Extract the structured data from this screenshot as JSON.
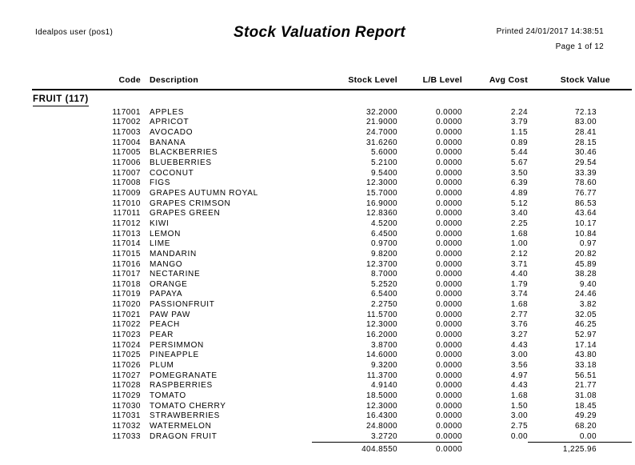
{
  "colors": {
    "text": "#000000",
    "background": "#ffffff"
  },
  "report": {
    "user": "Idealpos user (pos1)",
    "title": "Stock Valuation Report",
    "printed": "Printed 24/01/2017 14:38:51",
    "page": "Page 1 of 12"
  },
  "table": {
    "columns": [
      "Code",
      "Description",
      "Stock Level",
      "L/B Level",
      "Avg Cost",
      "Stock Value"
    ],
    "section": "FRUIT (117)",
    "rows": [
      {
        "code": "117001",
        "description": "APPLES",
        "stock_level": "32.2000",
        "lb_level": "0.0000",
        "avg_cost": "2.24",
        "stock_value": "72.13"
      },
      {
        "code": "117002",
        "description": "APRICOT",
        "stock_level": "21.9000",
        "lb_level": "0.0000",
        "avg_cost": "3.79",
        "stock_value": "83.00"
      },
      {
        "code": "117003",
        "description": "AVOCADO",
        "stock_level": "24.7000",
        "lb_level": "0.0000",
        "avg_cost": "1.15",
        "stock_value": "28.41"
      },
      {
        "code": "117004",
        "description": "BANANA",
        "stock_level": "31.6260",
        "lb_level": "0.0000",
        "avg_cost": "0.89",
        "stock_value": "28.15"
      },
      {
        "code": "117005",
        "description": "BLACKBERRIES",
        "stock_level": "5.6000",
        "lb_level": "0.0000",
        "avg_cost": "5.44",
        "stock_value": "30.46"
      },
      {
        "code": "117006",
        "description": "BLUEBERRIES",
        "stock_level": "5.2100",
        "lb_level": "0.0000",
        "avg_cost": "5.67",
        "stock_value": "29.54"
      },
      {
        "code": "117007",
        "description": "COCONUT",
        "stock_level": "9.5400",
        "lb_level": "0.0000",
        "avg_cost": "3.50",
        "stock_value": "33.39"
      },
      {
        "code": "117008",
        "description": "FIGS",
        "stock_level": "12.3000",
        "lb_level": "0.0000",
        "avg_cost": "6.39",
        "stock_value": "78.60"
      },
      {
        "code": "117009",
        "description": "GRAPES AUTUMN ROYAL",
        "stock_level": "15.7000",
        "lb_level": "0.0000",
        "avg_cost": "4.89",
        "stock_value": "76.77"
      },
      {
        "code": "117010",
        "description": "GRAPES CRIMSON",
        "stock_level": "16.9000",
        "lb_level": "0.0000",
        "avg_cost": "5.12",
        "stock_value": "86.53"
      },
      {
        "code": "117011",
        "description": "GRAPES GREEN",
        "stock_level": "12.8360",
        "lb_level": "0.0000",
        "avg_cost": "3.40",
        "stock_value": "43.64"
      },
      {
        "code": "117012",
        "description": "KIWI",
        "stock_level": "4.5200",
        "lb_level": "0.0000",
        "avg_cost": "2.25",
        "stock_value": "10.17"
      },
      {
        "code": "117013",
        "description": "LEMON",
        "stock_level": "6.4500",
        "lb_level": "0.0000",
        "avg_cost": "1.68",
        "stock_value": "10.84"
      },
      {
        "code": "117014",
        "description": "LIME",
        "stock_level": "0.9700",
        "lb_level": "0.0000",
        "avg_cost": "1.00",
        "stock_value": "0.97"
      },
      {
        "code": "117015",
        "description": "MANDARIN",
        "stock_level": "9.8200",
        "lb_level": "0.0000",
        "avg_cost": "2.12",
        "stock_value": "20.82"
      },
      {
        "code": "117016",
        "description": "MANGO",
        "stock_level": "12.3700",
        "lb_level": "0.0000",
        "avg_cost": "3.71",
        "stock_value": "45.89"
      },
      {
        "code": "117017",
        "description": "NECTARINE",
        "stock_level": "8.7000",
        "lb_level": "0.0000",
        "avg_cost": "4.40",
        "stock_value": "38.28"
      },
      {
        "code": "117018",
        "description": "ORANGE",
        "stock_level": "5.2520",
        "lb_level": "0.0000",
        "avg_cost": "1.79",
        "stock_value": "9.40"
      },
      {
        "code": "117019",
        "description": "PAPAYA",
        "stock_level": "6.5400",
        "lb_level": "0.0000",
        "avg_cost": "3.74",
        "stock_value": "24.46"
      },
      {
        "code": "117020",
        "description": "PASSIONFRUIT",
        "stock_level": "2.2750",
        "lb_level": "0.0000",
        "avg_cost": "1.68",
        "stock_value": "3.82"
      },
      {
        "code": "117021",
        "description": "PAW PAW",
        "stock_level": "11.5700",
        "lb_level": "0.0000",
        "avg_cost": "2.77",
        "stock_value": "32.05"
      },
      {
        "code": "117022",
        "description": "PEACH",
        "stock_level": "12.3000",
        "lb_level": "0.0000",
        "avg_cost": "3.76",
        "stock_value": "46.25"
      },
      {
        "code": "117023",
        "description": "PEAR",
        "stock_level": "16.2000",
        "lb_level": "0.0000",
        "avg_cost": "3.27",
        "stock_value": "52.97"
      },
      {
        "code": "117024",
        "description": "PERSIMMON",
        "stock_level": "3.8700",
        "lb_level": "0.0000",
        "avg_cost": "4.43",
        "stock_value": "17.14"
      },
      {
        "code": "117025",
        "description": "PINEAPPLE",
        "stock_level": "14.6000",
        "lb_level": "0.0000",
        "avg_cost": "3.00",
        "stock_value": "43.80"
      },
      {
        "code": "117026",
        "description": "PLUM",
        "stock_level": "9.3200",
        "lb_level": "0.0000",
        "avg_cost": "3.56",
        "stock_value": "33.18"
      },
      {
        "code": "117027",
        "description": "POMEGRANATE",
        "stock_level": "11.3700",
        "lb_level": "0.0000",
        "avg_cost": "4.97",
        "stock_value": "56.51"
      },
      {
        "code": "117028",
        "description": "RASPBERRIES",
        "stock_level": "4.9140",
        "lb_level": "0.0000",
        "avg_cost": "4.43",
        "stock_value": "21.77"
      },
      {
        "code": "117029",
        "description": "TOMATO",
        "stock_level": "18.5000",
        "lb_level": "0.0000",
        "avg_cost": "1.68",
        "stock_value": "31.08"
      },
      {
        "code": "117030",
        "description": "TOMATO CHERRY",
        "stock_level": "12.3000",
        "lb_level": "0.0000",
        "avg_cost": "1.50",
        "stock_value": "18.45"
      },
      {
        "code": "117031",
        "description": "STRAWBERRIES",
        "stock_level": "16.4300",
        "lb_level": "0.0000",
        "avg_cost": "3.00",
        "stock_value": "49.29"
      },
      {
        "code": "117032",
        "description": "WATERMELON",
        "stock_level": "24.8000",
        "lb_level": "0.0000",
        "avg_cost": "2.75",
        "stock_value": "68.20"
      },
      {
        "code": "117033",
        "description": "DRAGON FRUIT",
        "stock_level": "3.2720",
        "lb_level": "0.0000",
        "avg_cost": "0.00",
        "stock_value": "0.00"
      }
    ],
    "totals": {
      "stock_level": "404.8550",
      "lb_level": "0.0000",
      "avg_cost": "",
      "stock_value": "1,225.96"
    }
  }
}
